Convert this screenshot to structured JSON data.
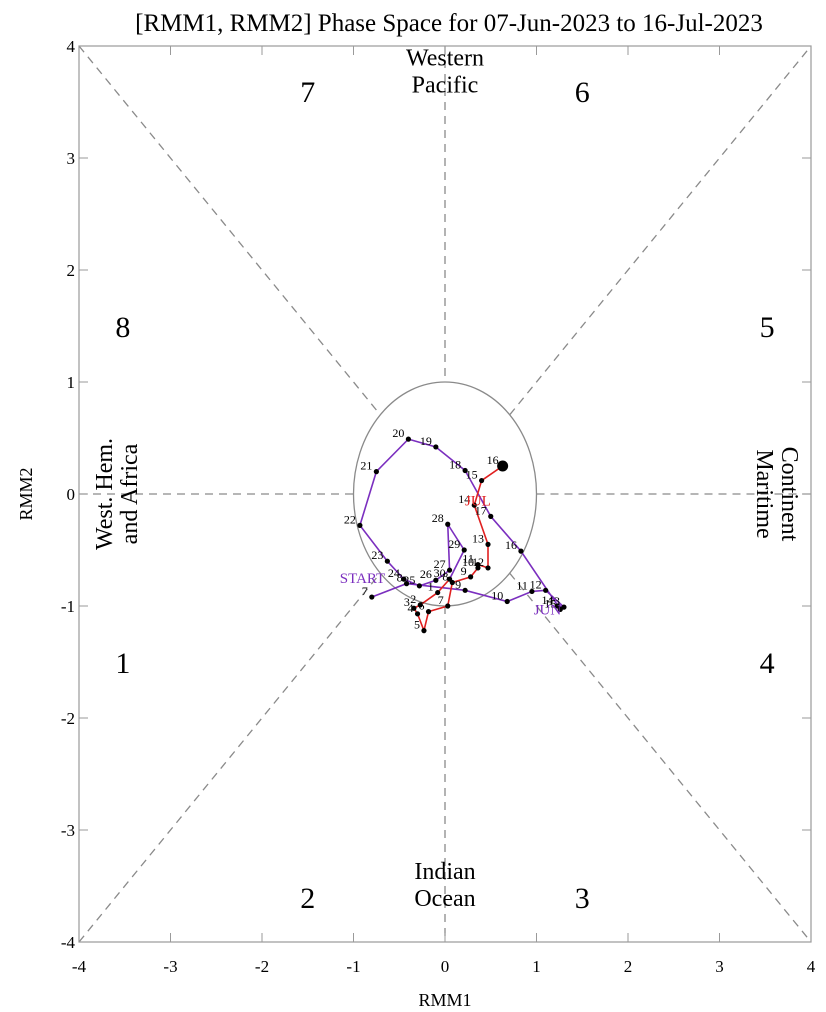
{
  "chart_data": {
    "type": "scatter",
    "title": "[RMM1, RMM2] Phase Space for 07-Jun-2023 to 16-Jul-2023",
    "xlabel": "RMM1",
    "ylabel": "RMM2",
    "xlim": [
      -4,
      4
    ],
    "ylim": [
      -4,
      4
    ],
    "xticks": [
      "-4",
      "-3",
      "-2",
      "-1",
      "0",
      "1",
      "2",
      "3",
      "4"
    ],
    "yticks": [
      "-4",
      "-3",
      "-2",
      "-1",
      "0",
      "1",
      "2",
      "3",
      "4"
    ],
    "phases": [
      {
        "label": "1",
        "x": -3.52,
        "y": -1.5
      },
      {
        "label": "2",
        "x": -1.5,
        "y": -3.6
      },
      {
        "label": "3",
        "x": 1.5,
        "y": -3.6
      },
      {
        "label": "4",
        "x": 3.52,
        "y": -1.5
      },
      {
        "label": "5",
        "x": 3.52,
        "y": 1.5
      },
      {
        "label": "6",
        "x": 1.5,
        "y": 3.6
      },
      {
        "label": "7",
        "x": -1.5,
        "y": 3.6
      },
      {
        "label": "8",
        "x": -3.52,
        "y": 1.5
      }
    ],
    "regions": {
      "top": [
        "Western",
        "Pacific"
      ],
      "bottom": [
        "Indian",
        "Ocean"
      ],
      "left": [
        "West. Hem.",
        "and Africa"
      ],
      "right": [
        "Maritime",
        "Continent"
      ]
    },
    "annotations": {
      "start": "START",
      "months": [
        {
          "label": "JUN",
          "color": "#7b2fbf",
          "x": 1.12,
          "y": -1.03
        },
        {
          "label": "JUL",
          "color": "#e02020",
          "x": 0.36,
          "y": -0.06
        }
      ]
    },
    "series": [
      {
        "color": "#7b2fbf",
        "points": [
          {
            "day": "7",
            "x": -0.8,
            "y": -0.92
          },
          {
            "day": "8",
            "x": -0.42,
            "y": -0.8
          },
          {
            "day": "9",
            "x": 0.22,
            "y": -0.86
          },
          {
            "day": "10",
            "x": 0.68,
            "y": -0.96
          },
          {
            "day": "11",
            "x": 0.95,
            "y": -0.87
          },
          {
            "day": "12",
            "x": 1.1,
            "y": -0.86
          },
          {
            "day": "13",
            "x": 1.3,
            "y": -1.01
          },
          {
            "day": "14",
            "x": 1.23,
            "y": -1.0
          },
          {
            "day": "15",
            "x": 1.26,
            "y": -1.03
          },
          {
            "day": "16",
            "x": 0.83,
            "y": -0.51
          },
          {
            "day": "17",
            "x": 0.5,
            "y": -0.2
          },
          {
            "day": "18",
            "x": 0.22,
            "y": 0.21
          },
          {
            "day": "19",
            "x": -0.1,
            "y": 0.42
          },
          {
            "day": "20",
            "x": -0.4,
            "y": 0.49
          },
          {
            "day": "21",
            "x": -0.75,
            "y": 0.2
          },
          {
            "day": "22",
            "x": -0.93,
            "y": -0.28
          },
          {
            "day": "23",
            "x": -0.63,
            "y": -0.6
          },
          {
            "day": "24",
            "x": -0.45,
            "y": -0.76
          },
          {
            "day": "25",
            "x": -0.28,
            "y": -0.82
          },
          {
            "day": "26",
            "x": -0.1,
            "y": -0.77
          },
          {
            "day": "27",
            "x": 0.05,
            "y": -0.68
          },
          {
            "day": "28",
            "x": 0.03,
            "y": -0.27
          },
          {
            "day": "29",
            "x": 0.21,
            "y": -0.5
          },
          {
            "day": "30",
            "x": 0.05,
            "y": -0.76
          }
        ]
      },
      {
        "color": "#e02020",
        "points": [
          {
            "day": "1",
            "x": -0.08,
            "y": -0.88
          },
          {
            "day": "2",
            "x": -0.27,
            "y": -0.99
          },
          {
            "day": "3",
            "x": -0.34,
            "y": -1.02
          },
          {
            "day": "4",
            "x": -0.3,
            "y": -1.07
          },
          {
            "day": "5",
            "x": -0.23,
            "y": -1.22
          },
          {
            "day": "6",
            "x": -0.18,
            "y": -1.05
          },
          {
            "day": "7",
            "x": 0.03,
            "y": -1.0
          },
          {
            "day": "8",
            "x": 0.08,
            "y": -0.79
          },
          {
            "day": "9",
            "x": 0.28,
            "y": -0.74
          },
          {
            "day": "10",
            "x": 0.36,
            "y": -0.66
          },
          {
            "day": "11",
            "x": 0.36,
            "y": -0.63
          },
          {
            "day": "12",
            "x": 0.47,
            "y": -0.66
          },
          {
            "day": "13",
            "x": 0.47,
            "y": -0.45
          },
          {
            "day": "14",
            "x": 0.32,
            "y": -0.1
          },
          {
            "day": "15",
            "x": 0.4,
            "y": 0.12
          },
          {
            "day": "16",
            "x": 0.63,
            "y": 0.25
          }
        ]
      }
    ]
  }
}
